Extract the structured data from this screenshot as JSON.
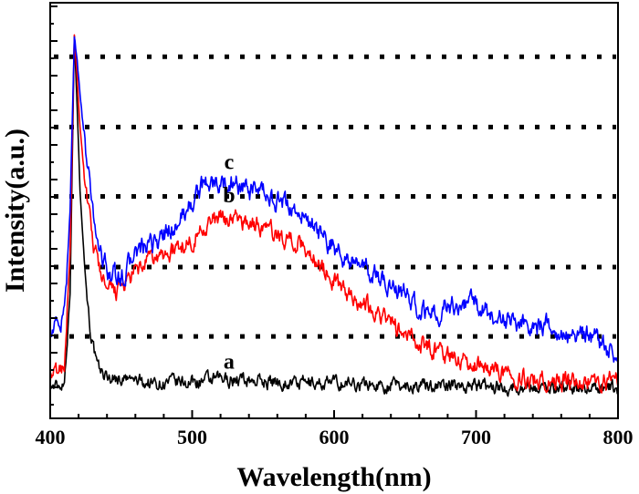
{
  "chart_data": {
    "type": "line",
    "title": "",
    "xlabel": "Wavelength(nm)",
    "ylabel": "Intensity(a.u.)",
    "xlim": [
      400,
      800
    ],
    "ylim": [
      0,
      1
    ],
    "x_ticks": [
      400,
      500,
      600,
      700,
      800
    ],
    "y_tick_labels": false,
    "grid": "horizontal dotted",
    "gridlines_y": [
      0.197,
      0.364,
      0.534,
      0.701,
      0.87
    ],
    "series": [
      {
        "name": "a",
        "color": "#000000",
        "points": [
          [
            400,
            0.08
          ],
          [
            405,
            0.075
          ],
          [
            410,
            0.09
          ],
          [
            414,
            0.3
          ],
          [
            417,
            0.92
          ],
          [
            419,
            0.75
          ],
          [
            421,
            0.55
          ],
          [
            424,
            0.38
          ],
          [
            428,
            0.22
          ],
          [
            433,
            0.12
          ],
          [
            440,
            0.1
          ],
          [
            450,
            0.095
          ],
          [
            470,
            0.085
          ],
          [
            490,
            0.085
          ],
          [
            510,
            0.09
          ],
          [
            530,
            0.095
          ],
          [
            550,
            0.09
          ],
          [
            570,
            0.085
          ],
          [
            590,
            0.085
          ],
          [
            610,
            0.085
          ],
          [
            630,
            0.08
          ],
          [
            650,
            0.08
          ],
          [
            680,
            0.08
          ],
          [
            700,
            0.08
          ],
          [
            720,
            0.075
          ],
          [
            750,
            0.075
          ],
          [
            780,
            0.075
          ],
          [
            800,
            0.07
          ]
        ]
      },
      {
        "name": "b",
        "color": "#ff0000",
        "points": [
          [
            400,
            0.1
          ],
          [
            405,
            0.11
          ],
          [
            410,
            0.13
          ],
          [
            414,
            0.4
          ],
          [
            417,
            0.92
          ],
          [
            419,
            0.82
          ],
          [
            421,
            0.7
          ],
          [
            425,
            0.55
          ],
          [
            430,
            0.42
          ],
          [
            435,
            0.36
          ],
          [
            440,
            0.3
          ],
          [
            450,
            0.31
          ],
          [
            460,
            0.35
          ],
          [
            470,
            0.38
          ],
          [
            480,
            0.39
          ],
          [
            490,
            0.41
          ],
          [
            500,
            0.43
          ],
          [
            510,
            0.47
          ],
          [
            520,
            0.48
          ],
          [
            530,
            0.48
          ],
          [
            540,
            0.47
          ],
          [
            550,
            0.46
          ],
          [
            560,
            0.44
          ],
          [
            570,
            0.43
          ],
          [
            580,
            0.41
          ],
          [
            590,
            0.37
          ],
          [
            600,
            0.33
          ],
          [
            610,
            0.3
          ],
          [
            620,
            0.28
          ],
          [
            630,
            0.26
          ],
          [
            640,
            0.23
          ],
          [
            650,
            0.2
          ],
          [
            660,
            0.18
          ],
          [
            670,
            0.17
          ],
          [
            680,
            0.15
          ],
          [
            690,
            0.14
          ],
          [
            700,
            0.13
          ],
          [
            710,
            0.125
          ],
          [
            720,
            0.11
          ],
          [
            730,
            0.1
          ],
          [
            740,
            0.095
          ],
          [
            750,
            0.09
          ],
          [
            760,
            0.09
          ],
          [
            770,
            0.085
          ],
          [
            780,
            0.09
          ],
          [
            790,
            0.09
          ],
          [
            800,
            0.09
          ]
        ]
      },
      {
        "name": "c",
        "color": "#0000ff",
        "points": [
          [
            400,
            0.22
          ],
          [
            405,
            0.22
          ],
          [
            410,
            0.24
          ],
          [
            414,
            0.5
          ],
          [
            417,
            0.92
          ],
          [
            419,
            0.86
          ],
          [
            421,
            0.78
          ],
          [
            425,
            0.64
          ],
          [
            430,
            0.5
          ],
          [
            435,
            0.4
          ],
          [
            440,
            0.36
          ],
          [
            450,
            0.33
          ],
          [
            460,
            0.4
          ],
          [
            470,
            0.41
          ],
          [
            480,
            0.44
          ],
          [
            490,
            0.47
          ],
          [
            500,
            0.52
          ],
          [
            510,
            0.57
          ],
          [
            520,
            0.56
          ],
          [
            530,
            0.57
          ],
          [
            540,
            0.54
          ],
          [
            550,
            0.54
          ],
          [
            560,
            0.52
          ],
          [
            570,
            0.51
          ],
          [
            580,
            0.48
          ],
          [
            590,
            0.44
          ],
          [
            600,
            0.41
          ],
          [
            610,
            0.38
          ],
          [
            620,
            0.36
          ],
          [
            630,
            0.34
          ],
          [
            640,
            0.32
          ],
          [
            650,
            0.3
          ],
          [
            660,
            0.26
          ],
          [
            670,
            0.25
          ],
          [
            680,
            0.27
          ],
          [
            690,
            0.28
          ],
          [
            700,
            0.27
          ],
          [
            710,
            0.25
          ],
          [
            720,
            0.24
          ],
          [
            730,
            0.23
          ],
          [
            740,
            0.22
          ],
          [
            750,
            0.22
          ],
          [
            760,
            0.21
          ],
          [
            770,
            0.2
          ],
          [
            780,
            0.2
          ],
          [
            790,
            0.17
          ],
          [
            800,
            0.15
          ]
        ]
      }
    ],
    "annotations": [
      {
        "text": "a",
        "x": 526,
        "y": 0.12
      },
      {
        "text": "b",
        "x": 526,
        "y": 0.52
      },
      {
        "text": "c",
        "x": 526,
        "y": 0.6
      }
    ]
  }
}
